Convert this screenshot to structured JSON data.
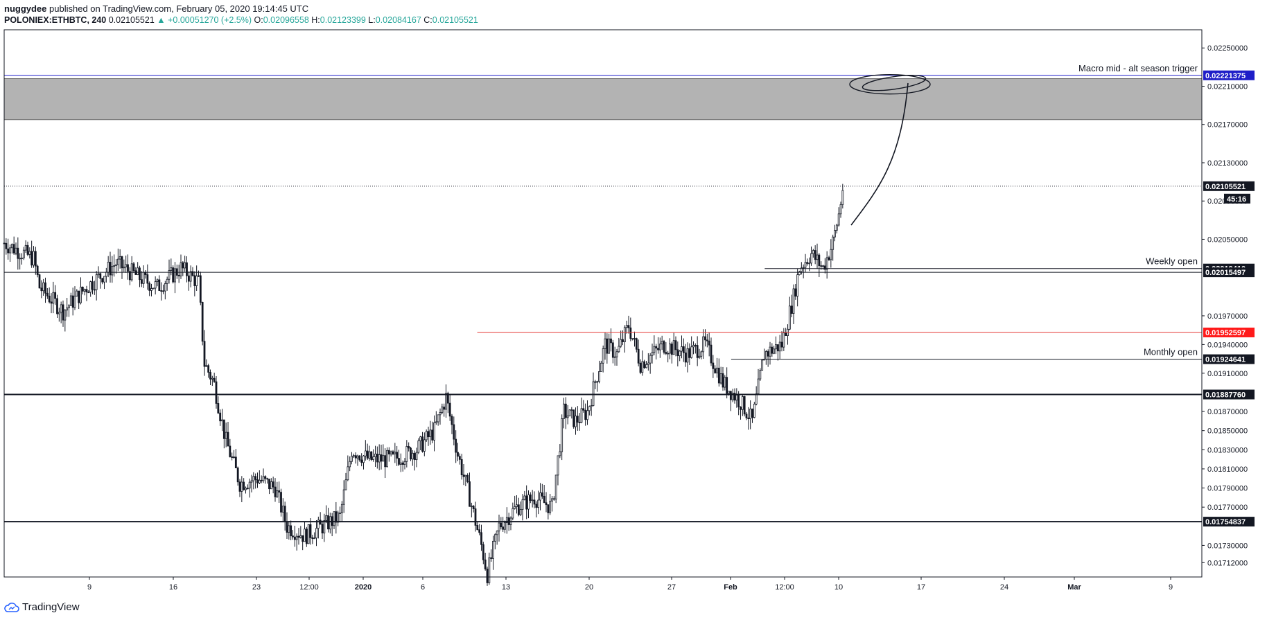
{
  "header": {
    "author": "nuggydee",
    "published": "published on TradingView.com, February 05, 2020 19:14:45 UTC",
    "symbol": "POLONIEX:ETHBTC, 240",
    "last": "0.02105521",
    "change": "▲ +0.00051270 (+2.5%)",
    "o_label": "O:",
    "o_value": "0.02096558",
    "h_label": "H:",
    "h_value": "0.02123399",
    "l_label": "L:",
    "l_value": "0.02084167",
    "c_label": "C:",
    "c_value": "0.02105521"
  },
  "footer": {
    "brand": "TradingView",
    "logo_icon": "tradingview-cloud-icon"
  },
  "chart_data": {
    "type": "candlestick",
    "y_range": [
      0.01697,
      0.02269
    ],
    "x_ticks": [
      "9",
      "16",
      "23",
      "12:00",
      "2020",
      "6",
      "13",
      "20",
      "27",
      "Feb",
      "12:00",
      "10",
      "17",
      "24",
      "Mar",
      "9"
    ],
    "y_ticks": [
      "0.02250000",
      "0.02210000",
      "0.02170000",
      "0.02130000",
      "0.02090000",
      "0.02050000",
      "0.01970000",
      "0.01940000",
      "0.01910000",
      "0.01870000",
      "0.01850000",
      "0.01830000",
      "0.01810000",
      "0.01790000",
      "0.01770000",
      "0.01730000",
      "0.01712000"
    ],
    "y_tick_values": [
      0.0225,
      0.0221,
      0.0217,
      0.0213,
      0.0209,
      0.0205,
      0.0197,
      0.0194,
      0.0191,
      0.0187,
      0.0185,
      0.0183,
      0.0181,
      0.0179,
      0.0177,
      0.0173,
      0.01712
    ],
    "price_path": [
      [
        0.0,
        0.02046
      ],
      [
        2.5,
        0.0203
      ],
      [
        3.0,
        0.02
      ],
      [
        5.0,
        0.01975
      ],
      [
        7.0,
        0.02
      ],
      [
        9.5,
        0.02025
      ],
      [
        11.5,
        0.0201
      ],
      [
        13.0,
        0.02
      ],
      [
        15.0,
        0.0202
      ],
      [
        16.5,
        0.02005
      ],
      [
        17.0,
        0.0192
      ],
      [
        17.8,
        0.019
      ],
      [
        18.8,
        0.0184
      ],
      [
        20.0,
        0.01795
      ],
      [
        21.5,
        0.018
      ],
      [
        23.0,
        0.0179
      ],
      [
        24.0,
        0.0175
      ],
      [
        25.5,
        0.0174
      ],
      [
        27.0,
        0.0175
      ],
      [
        28.5,
        0.0176
      ],
      [
        29.5,
        0.0183
      ],
      [
        31.0,
        0.0182
      ],
      [
        33.0,
        0.0182
      ],
      [
        35.0,
        0.0183
      ],
      [
        36.5,
        0.0185
      ],
      [
        37.5,
        0.01885
      ],
      [
        38.5,
        0.01825
      ],
      [
        39.5,
        0.0178
      ],
      [
        40.5,
        0.0173
      ],
      [
        41.0,
        0.017
      ],
      [
        42.0,
        0.0175
      ],
      [
        43.5,
        0.0177
      ],
      [
        45.0,
        0.0178
      ],
      [
        46.5,
        0.0177
      ],
      [
        47.5,
        0.0187
      ],
      [
        48.5,
        0.0186
      ],
      [
        49.5,
        0.0187
      ],
      [
        51.0,
        0.0194
      ],
      [
        52.0,
        0.0193
      ],
      [
        53.0,
        0.0196
      ],
      [
        54.0,
        0.0192
      ],
      [
        56.0,
        0.0194
      ],
      [
        58.0,
        0.0193
      ],
      [
        59.5,
        0.0194
      ],
      [
        61.0,
        0.019
      ],
      [
        62.5,
        0.0188
      ],
      [
        63.5,
        0.0186
      ],
      [
        64.5,
        0.0193
      ],
      [
        66.0,
        0.0194
      ],
      [
        67.0,
        0.0199
      ],
      [
        67.5,
        0.0202
      ],
      [
        68.5,
        0.02035
      ],
      [
        69.5,
        0.0202
      ],
      [
        70.3,
        0.02045
      ],
      [
        70.9,
        0.0208
      ],
      [
        71.2,
        0.02106
      ]
    ],
    "levels": [
      {
        "label": "Macro mid - alt season trigger",
        "value": "0.02221375",
        "y": 0.02221375,
        "color": "#1e1ec8",
        "tag_color": "#1e1ec8",
        "x_start_frac": 0.0
      },
      {
        "label": "",
        "value": "0.02105521",
        "y": 0.02105521,
        "color": "#131722",
        "tag_color": "#131722",
        "dotted": true,
        "x_start_frac": 0.0
      },
      {
        "label": "Weekly open",
        "value": "0.02019410",
        "y": 0.0201941,
        "color": "#131722",
        "tag_color": "#131722",
        "x_start_frac": 0.635
      },
      {
        "label": "",
        "value": "0.02015497",
        "y": 0.02015497,
        "color": "#131722",
        "tag_color": "#131722",
        "x_start_frac": 0.0
      },
      {
        "label": "",
        "value": "0.01952597",
        "y": 0.01952597,
        "color": "#e53935",
        "tag_color": "#ff1a1a",
        "x_start_frac": 0.395
      },
      {
        "label": "Monthly open",
        "value": "0.01924641",
        "y": 0.01924641,
        "color": "#131722",
        "tag_color": "#131722",
        "x_start_frac": 0.607
      },
      {
        "label": "",
        "value": "0.01887760",
        "y": 0.0188776,
        "color": "#131722",
        "tag_color": "#131722",
        "bold": true,
        "x_start_frac": 0.0
      },
      {
        "label": "",
        "value": "0.01754837",
        "y": 0.01754837,
        "color": "#131722",
        "tag_color": "#131722",
        "bold": true,
        "x_start_frac": 0.0
      }
    ],
    "zone": {
      "y_top": 0.02218,
      "y_bottom": 0.02175,
      "color": "#b3b3b3"
    },
    "countdown": "45:16"
  }
}
